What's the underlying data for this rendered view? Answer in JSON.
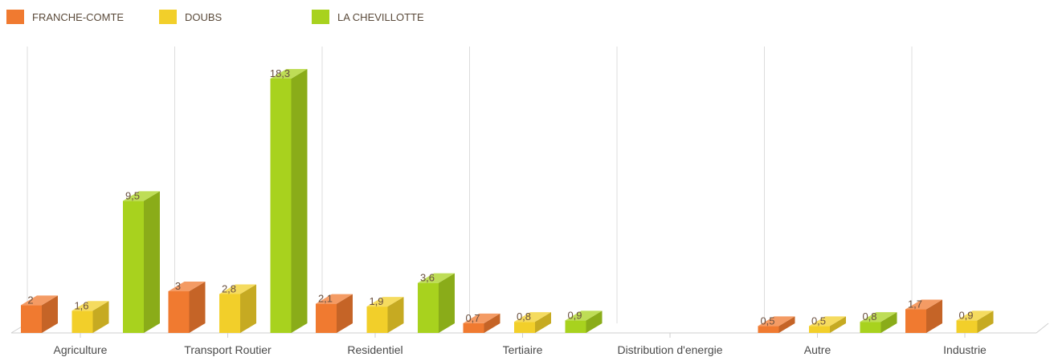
{
  "chart_data": {
    "type": "bar",
    "categories": [
      "Agriculture",
      "Transport Routier",
      "Residentiel",
      "Tertiaire",
      "Distribution d'energie",
      "Autre",
      "Industrie"
    ],
    "series": [
      {
        "name": "FRANCHE-COMTE",
        "color": "#f07a30",
        "values": [
          2,
          3,
          2.1,
          0.7,
          null,
          0.5,
          1.7
        ],
        "labels": [
          "2",
          "3",
          "2,1",
          "0,7",
          "",
          "0,5",
          "1,7"
        ]
      },
      {
        "name": "DOUBS",
        "color": "#f2cf2a",
        "values": [
          1.6,
          2.8,
          1.9,
          0.8,
          null,
          0.5,
          0.9
        ],
        "labels": [
          "1,6",
          "2,8",
          "1,9",
          "0,8",
          "",
          "0,5",
          "0,9"
        ]
      },
      {
        "name": "LA CHEVILLOTTE",
        "color": "#a8d21e",
        "values": [
          9.5,
          18.3,
          3.6,
          0.9,
          null,
          0.8,
          null
        ],
        "labels": [
          "9,5",
          "18,3",
          "3,6",
          "0,9",
          "",
          "0,8",
          ""
        ]
      }
    ],
    "ylim": [
      0,
      18.3
    ],
    "style": "3d-bars",
    "legend_position": "top-left",
    "grid": "vertical"
  }
}
